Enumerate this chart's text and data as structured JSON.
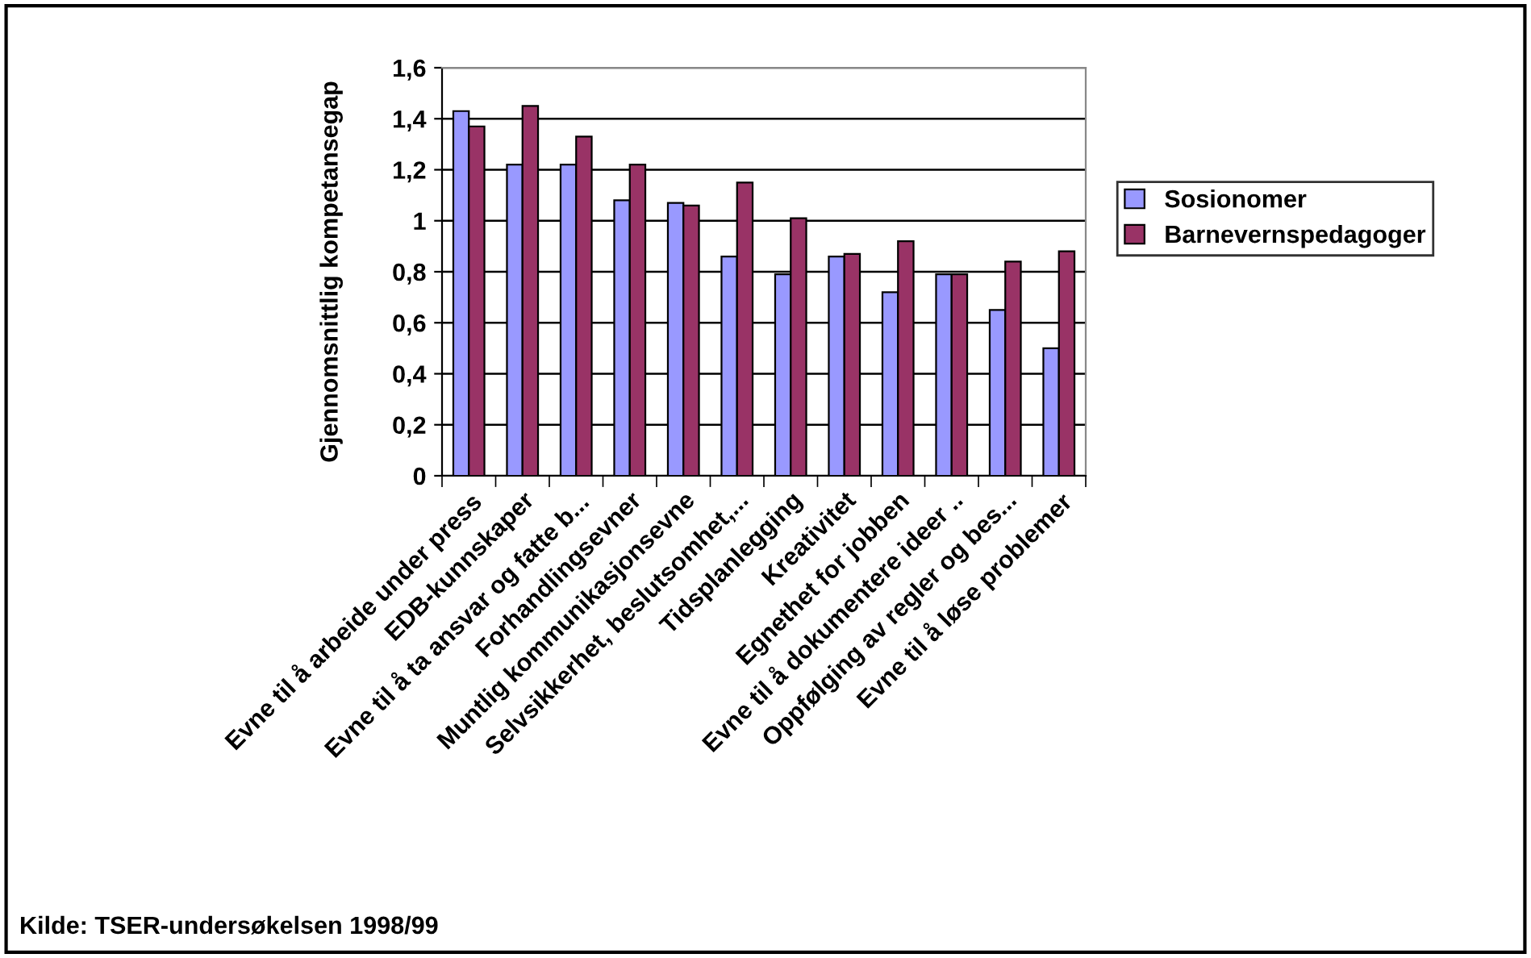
{
  "chart_data": {
    "type": "bar",
    "ylabel": "Gjennomsnittlig kompetansegap",
    "categories": [
      "Evne til å arbeide under press",
      "EDB-kunnskaper",
      "Evne til å ta ansvar og fatte b...",
      "Forhandlingsevner",
      "Muntlig kommunikasjonsevne",
      "Selvsikkerhet, beslutsomhet,...",
      "Tidsplanlegging",
      "Kreativitet",
      "Egnethet for jobben",
      "Evne til å dokumentere ideer ..",
      "Oppfølging av regler og bes...",
      "Evne til å løse problemer"
    ],
    "series": [
      {
        "name": "Sosionomer",
        "color": "#9999ff",
        "values": [
          1.43,
          1.22,
          1.22,
          1.08,
          1.07,
          0.86,
          0.79,
          0.86,
          0.72,
          0.79,
          0.65,
          0.5
        ]
      },
      {
        "name": "Barnevernspedagoger",
        "color": "#993366",
        "values": [
          1.37,
          1.45,
          1.33,
          1.22,
          1.06,
          1.15,
          1.01,
          0.87,
          0.92,
          0.79,
          0.84,
          0.88
        ]
      }
    ],
    "ylim": [
      0,
      1.6
    ],
    "yticks": [
      0,
      {
        "value": 0.2,
        "label": "0,2"
      },
      {
        "value": 0.4,
        "label": "0,4"
      },
      {
        "value": 0.6,
        "label": "0,6"
      },
      {
        "value": 0.8,
        "label": "0,8"
      },
      1,
      {
        "value": 1.2,
        "label": "1,2"
      },
      {
        "value": 1.4,
        "label": "1,4"
      },
      {
        "value": 1.6,
        "label": "1,6"
      }
    ],
    "grid": "y",
    "legend": "right",
    "annotations": [
      "Kilde: TSER-undersøkelsen 1998/99"
    ]
  }
}
